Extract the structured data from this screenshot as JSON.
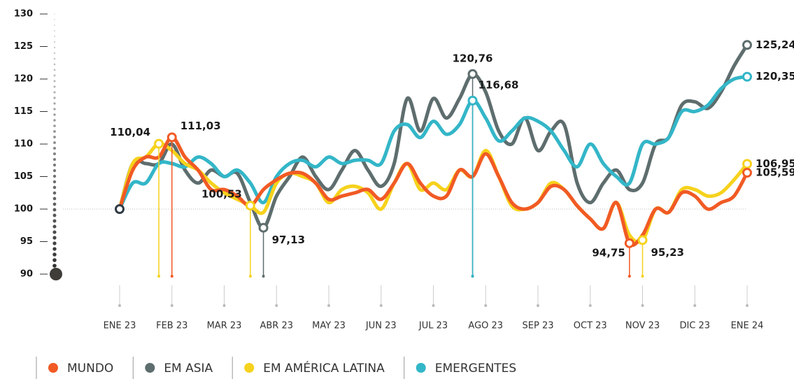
{
  "chart_data": {
    "type": "line",
    "categories": [
      "ENE 23",
      null,
      null,
      null,
      "FEB 23",
      null,
      null,
      null,
      "MAR 23",
      null,
      null,
      null,
      "ABR 23",
      null,
      null,
      null,
      "MAY 23",
      null,
      null,
      null,
      "JUN 23",
      null,
      null,
      null,
      "JUL 23",
      null,
      null,
      null,
      "AGO 23",
      null,
      null,
      null,
      "SEP 23",
      null,
      null,
      null,
      "OCT 23",
      null,
      null,
      null,
      "NOV 23",
      null,
      null,
      null,
      "DIC 23",
      null,
      null,
      null,
      "ENE 24"
    ],
    "ylim": [
      90,
      130
    ],
    "yticks": [
      90,
      95,
      100,
      105,
      110,
      115,
      120,
      125,
      130
    ],
    "series": [
      {
        "name": "EM ASIA",
        "color": "#5e6d6d",
        "values": [
          100,
          107,
          107,
          107,
          110,
          106,
          104,
          106,
          105,
          105.5,
          101,
          97.13,
          102,
          105,
          108,
          105,
          103,
          106,
          109,
          106,
          103.5,
          107,
          117,
          112,
          117,
          114,
          117,
          120.76,
          118,
          112,
          110,
          114,
          109,
          112,
          113,
          104,
          101,
          104,
          106,
          103,
          104,
          110,
          111,
          116,
          116.5,
          115.5,
          118,
          122,
          125.24
        ],
        "value_labels": [
          null,
          null,
          null,
          null,
          null,
          null,
          null,
          null,
          null,
          null,
          null,
          "97,13",
          null,
          null,
          null,
          null,
          null,
          null,
          null,
          null,
          null,
          null,
          null,
          null,
          null,
          null,
          null,
          "120,76",
          null,
          null,
          null,
          null,
          null,
          null,
          null,
          null,
          null,
          null,
          null,
          null,
          null,
          null,
          null,
          null,
          null,
          null,
          null,
          null,
          "125,24"
        ]
      },
      {
        "name": "EMERGENTES",
        "color": "#33b6c8",
        "values": [
          100,
          104,
          104,
          107,
          107,
          106.5,
          108,
          107,
          105,
          106,
          104,
          101,
          105,
          107,
          107.5,
          106.5,
          108,
          107,
          107.5,
          107.5,
          107,
          112,
          113,
          111,
          113.5,
          111.5,
          113,
          116.68,
          114,
          110.5,
          112,
          114,
          113.5,
          112,
          109,
          106.5,
          110,
          107,
          105,
          104,
          110,
          110,
          111,
          115,
          115,
          116,
          118.5,
          120,
          120.35
        ],
        "value_labels": [
          null,
          null,
          null,
          null,
          null,
          null,
          null,
          null,
          null,
          null,
          null,
          null,
          null,
          null,
          null,
          null,
          null,
          null,
          null,
          null,
          null,
          null,
          null,
          null,
          null,
          null,
          null,
          "116,68",
          null,
          null,
          null,
          null,
          null,
          null,
          null,
          null,
          null,
          null,
          null,
          null,
          null,
          null,
          null,
          null,
          null,
          null,
          null,
          null,
          "120,35"
        ]
      },
      {
        "name": "EM AMÉRICA LATINA",
        "color": "#f6d21c",
        "values": [
          100,
          107,
          108,
          110.04,
          109,
          107,
          106,
          104,
          102.5,
          101.5,
          100.53,
          99.5,
          104,
          105.5,
          105,
          104,
          101,
          103,
          103.5,
          102.5,
          100,
          104,
          107,
          103,
          104,
          103,
          106,
          105,
          109,
          105,
          100.5,
          100,
          101,
          104,
          103,
          100.5,
          98.5,
          97,
          101,
          96,
          95.23,
          100,
          99.5,
          103,
          103,
          102,
          102.5,
          104.5,
          106.95
        ],
        "value_labels": [
          null,
          null,
          null,
          "110,04",
          null,
          null,
          null,
          null,
          null,
          null,
          "100,53",
          null,
          null,
          null,
          null,
          null,
          null,
          null,
          null,
          null,
          null,
          null,
          null,
          null,
          null,
          null,
          null,
          null,
          null,
          null,
          null,
          null,
          null,
          null,
          null,
          null,
          null,
          null,
          null,
          null,
          "95,23",
          null,
          null,
          null,
          null,
          null,
          null,
          null,
          "106,95"
        ]
      },
      {
        "name": "MUNDO",
        "color": "#f15a24",
        "values": [
          100,
          106,
          108,
          108,
          111.03,
          108,
          106,
          103,
          103,
          102,
          100.5,
          103,
          104.5,
          105.5,
          105.5,
          104,
          101.5,
          102,
          102.5,
          103,
          101.5,
          104,
          107,
          104,
          102,
          102,
          106,
          105,
          108.5,
          105,
          101,
          100,
          101,
          103.5,
          103,
          100.5,
          98.5,
          97,
          101,
          94.75,
          96,
          100,
          99.5,
          102.5,
          102,
          100,
          101,
          102,
          105.59
        ],
        "value_labels": [
          null,
          null,
          null,
          null,
          "111,03",
          null,
          null,
          null,
          null,
          null,
          null,
          null,
          null,
          null,
          null,
          null,
          null,
          null,
          null,
          null,
          null,
          null,
          null,
          null,
          null,
          null,
          null,
          null,
          null,
          null,
          null,
          null,
          null,
          null,
          null,
          null,
          null,
          null,
          null,
          "94,75",
          null,
          null,
          null,
          null,
          null,
          null,
          null,
          null,
          "105,59"
        ]
      }
    ],
    "legend": [
      "MUNDO",
      "EM ASIA",
      "EM AMÉRICA LATINA",
      "EMERGENTES"
    ]
  }
}
